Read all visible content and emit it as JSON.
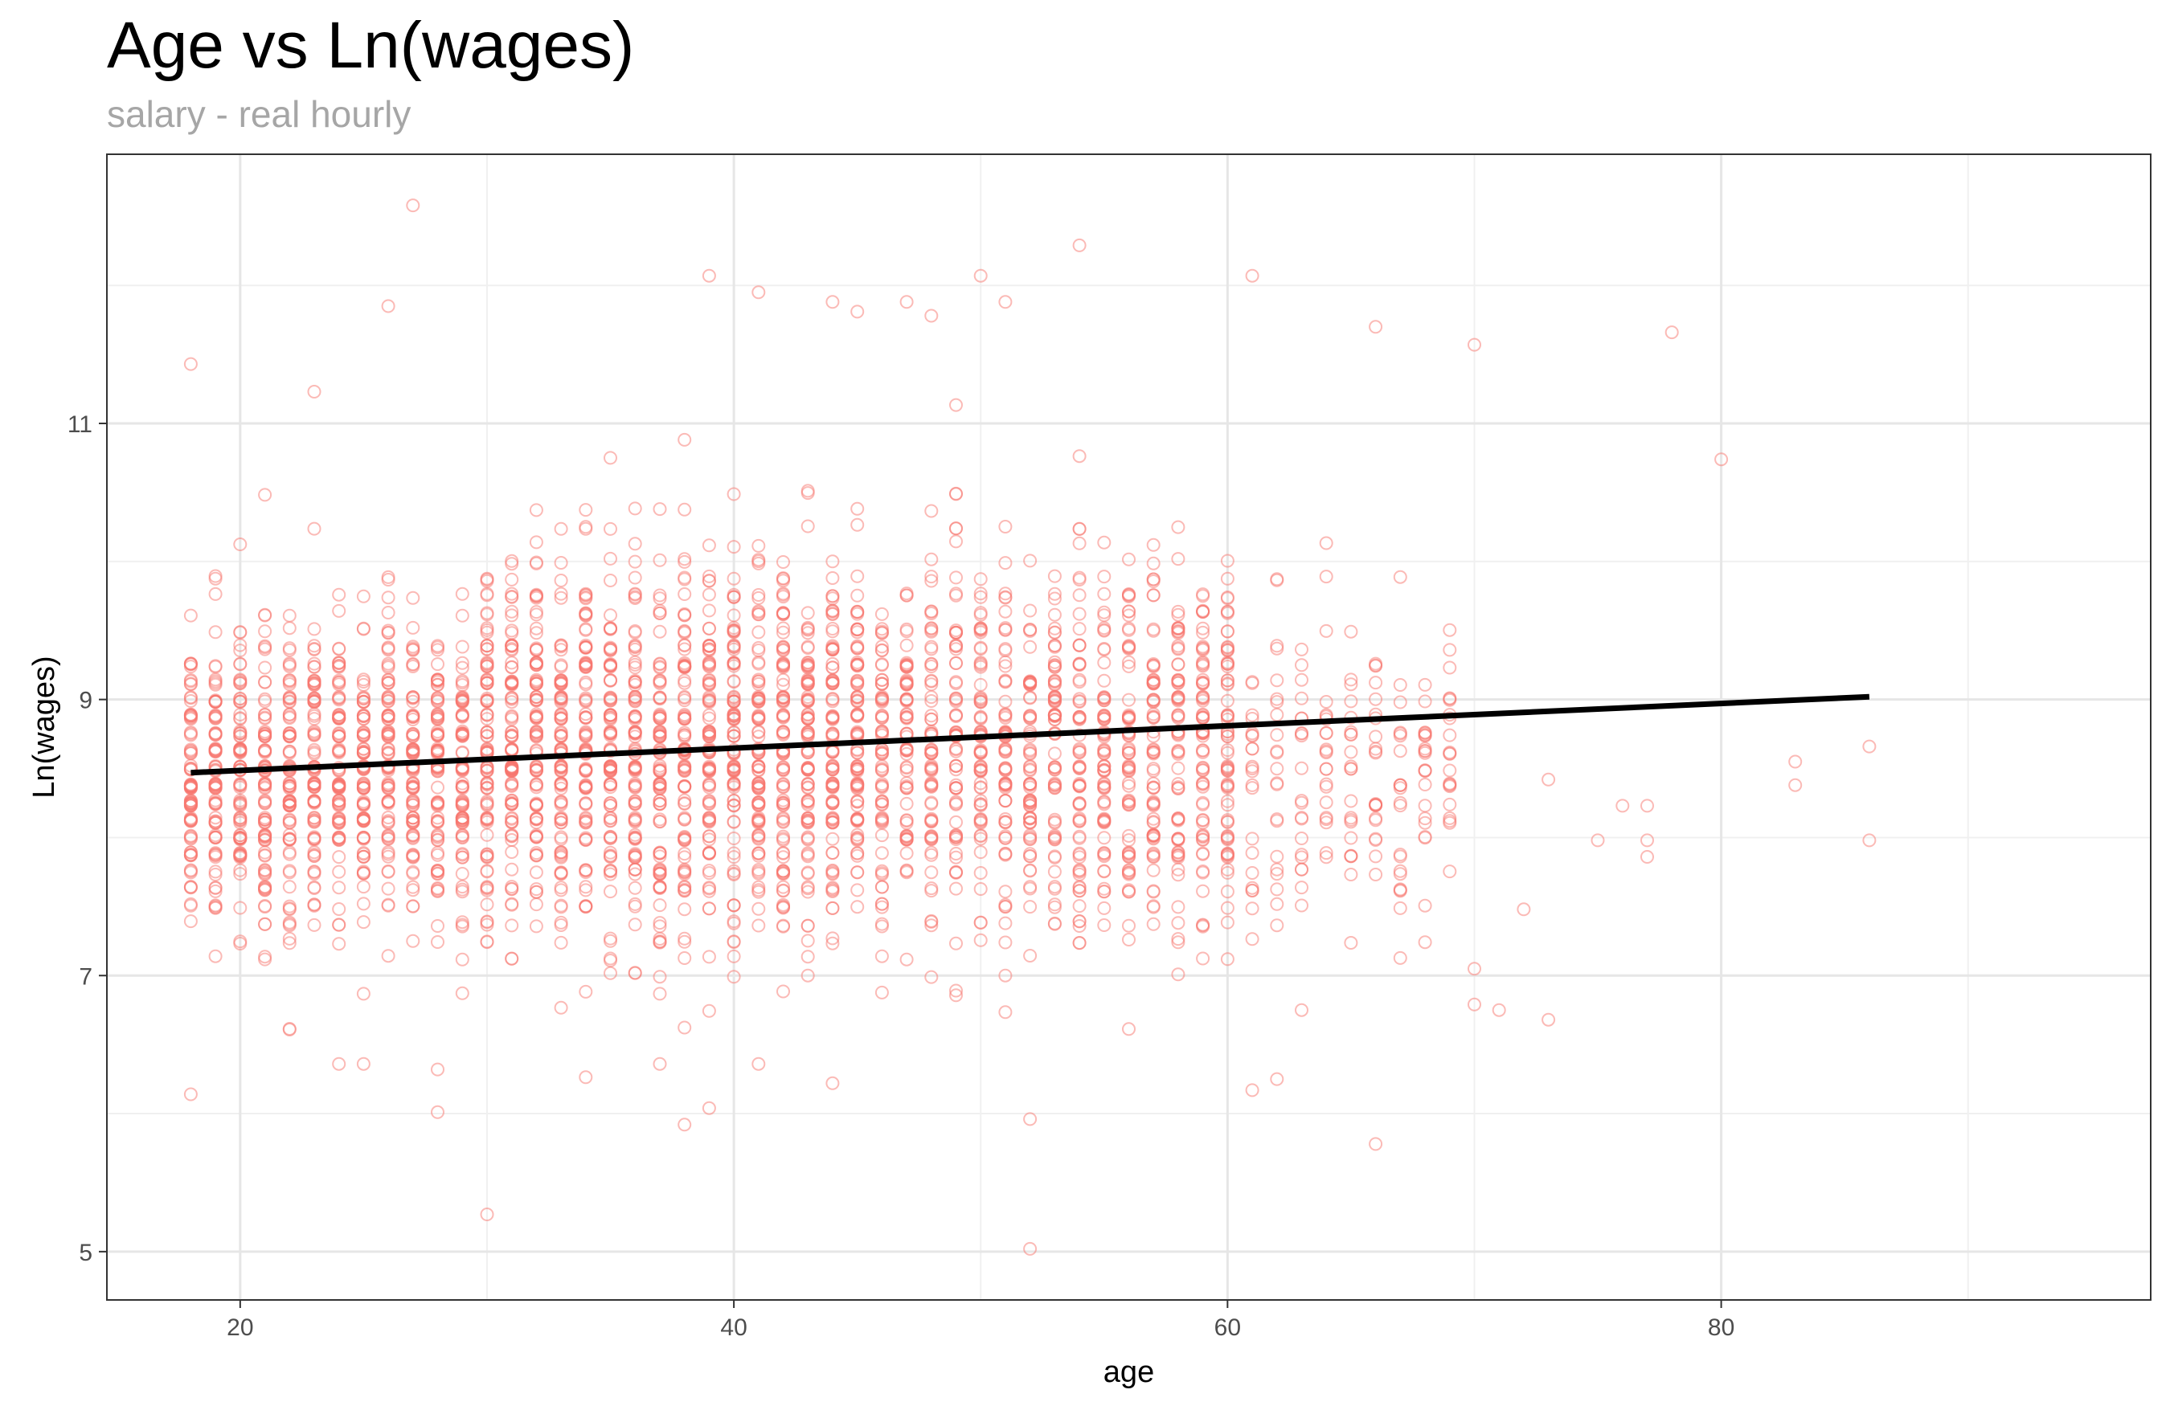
{
  "chart_data": {
    "type": "scatter",
    "title": "Age vs Ln(wages)",
    "subtitle": "salary - real hourly",
    "xlabel": "age",
    "ylabel": "Ln(wages)",
    "xlim": [
      14.6,
      97.4
    ],
    "ylim": [
      4.65,
      12.95
    ],
    "x_ticks": [
      20,
      40,
      60,
      80
    ],
    "y_ticks": [
      5,
      7,
      9,
      11
    ],
    "x_minor_ticks": [
      30,
      50,
      70,
      90
    ],
    "y_minor_ticks": [
      6,
      8,
      10,
      12
    ],
    "grid": true,
    "point_color": "#F8766D",
    "line_color": "#000000",
    "trend_line": {
      "x": [
        18,
        86
      ],
      "y": [
        8.47,
        9.02
      ]
    },
    "outlier_points": [
      [
        27,
        12.58
      ],
      [
        54,
        12.29
      ],
      [
        39,
        12.07
      ],
      [
        50,
        12.07
      ],
      [
        61,
        12.07
      ],
      [
        41,
        11.95
      ],
      [
        44,
        11.88
      ],
      [
        47,
        11.88
      ],
      [
        51,
        11.88
      ],
      [
        26,
        11.85
      ],
      [
        45,
        11.81
      ],
      [
        48,
        11.78
      ],
      [
        78,
        11.66
      ],
      [
        66,
        11.7
      ],
      [
        70,
        11.57
      ],
      [
        18,
        11.43
      ],
      [
        23,
        11.23
      ],
      [
        80,
        10.74
      ],
      [
        83,
        8.55
      ],
      [
        83,
        8.38
      ],
      [
        86,
        8.66
      ],
      [
        86,
        7.98
      ],
      [
        77,
        8.23
      ],
      [
        77,
        7.98
      ],
      [
        77,
        7.86
      ],
      [
        76,
        8.23
      ],
      [
        75,
        7.98
      ],
      [
        73,
        8.42
      ],
      [
        73,
        6.68
      ],
      [
        72,
        7.48
      ],
      [
        71,
        6.75
      ],
      [
        70,
        7.05
      ],
      [
        70,
        6.79
      ],
      [
        30,
        5.27
      ],
      [
        52,
        5.02
      ],
      [
        66,
        5.78
      ],
      [
        28,
        6.01
      ],
      [
        38,
        5.92
      ],
      [
        39,
        6.04
      ],
      [
        52,
        5.96
      ],
      [
        18,
        6.14
      ],
      [
        61,
        6.17
      ],
      [
        44,
        6.22
      ],
      [
        62,
        6.25
      ],
      [
        24,
        6.36
      ],
      [
        25,
        6.36
      ],
      [
        41,
        6.36
      ],
      [
        37,
        6.36
      ],
      [
        28,
        6.32
      ]
    ],
    "series": [
      {
        "name": "",
        "density_bands": [
          {
            "x_range": [
              18,
              29
            ],
            "y_center": 8.45,
            "y_spread": 0.55,
            "points_per_age": 85
          },
          {
            "x_range": [
              30,
              45
            ],
            "y_center": 8.65,
            "y_spread": 0.65,
            "points_per_age": 95
          },
          {
            "x_range": [
              46,
              60
            ],
            "y_center": 8.65,
            "y_spread": 0.65,
            "points_per_age": 70
          },
          {
            "x_range": [
              61,
              69
            ],
            "y_center": 8.5,
            "y_spread": 0.6,
            "points_per_age": 22
          }
        ]
      }
    ]
  }
}
